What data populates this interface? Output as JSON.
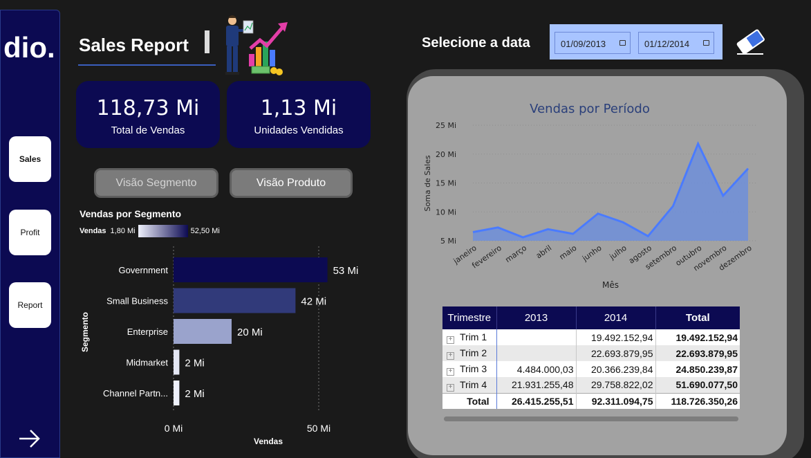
{
  "app": {
    "title": "Sales Report",
    "logo_text": "dio."
  },
  "sidebar": {
    "items": [
      {
        "label": "Sales"
      },
      {
        "label": "Profit"
      },
      {
        "label": "Report"
      }
    ]
  },
  "kpis": [
    {
      "value": "118,73 Mi",
      "label": "Total de Vendas"
    },
    {
      "value": "1,13 Mi",
      "label": "Unidades Vendidas"
    }
  ],
  "buttons": {
    "segment_view": "Visão Segmento",
    "product_view": "Visão Produto"
  },
  "date_filter": {
    "title": "Selecione a data",
    "start": "01/09/2013",
    "end": "01/12/2014"
  },
  "segment_chart": {
    "title": "Vendas por Segmento",
    "legend_label": "Vendas",
    "legend_min": "1,80 Mi",
    "legend_max": "52,50 Mi",
    "colors": [
      "#0c0a52",
      "#313a7a",
      "#9aa3cc",
      "#e3e6f3",
      "#eef0fb"
    ]
  },
  "period_chart": {
    "title": "Vendas por Período"
  },
  "chart_data": [
    {
      "type": "bar",
      "orientation": "horizontal",
      "title": "Vendas por Segmento",
      "xlabel": "Vendas",
      "ylabel": "Segmento",
      "categories": [
        "Government",
        "Small Business",
        "Enterprise",
        "Midmarket",
        "Channel Partn..."
      ],
      "values": [
        53,
        42,
        20,
        2,
        2
      ],
      "value_labels": [
        "53 Mi",
        "42 Mi",
        "20 Mi",
        "2 Mi",
        "2 Mi"
      ],
      "xlim": [
        0,
        53
      ],
      "x_ticks": [
        "0 Mi",
        "50 Mi"
      ]
    },
    {
      "type": "area",
      "title": "Vendas por Período",
      "xlabel": "Mês",
      "ylabel": "Soma de Sales",
      "categories": [
        "janeiro",
        "fevereiro",
        "março",
        "abril",
        "maio",
        "junho",
        "julho",
        "agosto",
        "setembro",
        "outubro",
        "novembro",
        "dezembro"
      ],
      "values": [
        6.5,
        7.3,
        5.6,
        7.0,
        6.2,
        9.7,
        8.2,
        5.8,
        11.0,
        21.8,
        12.8,
        17.5
      ],
      "ylim": [
        5,
        25
      ],
      "y_ticks": [
        "5 Mi",
        "10 Mi",
        "15 Mi",
        "20 Mi",
        "25 Mi"
      ],
      "y_tick_values": [
        5,
        10,
        15,
        20,
        25
      ],
      "color": "#4a7bff",
      "fill": "#6f8fdb",
      "grid": true
    }
  ],
  "matrix": {
    "headers": [
      "Trimestre",
      "2013",
      "2014",
      "Total"
    ],
    "rows": [
      {
        "label": "Trim 1",
        "y2013": "",
        "y2014": "19.492.152,94",
        "total": "19.492.152,94"
      },
      {
        "label": "Trim 2",
        "y2013": "",
        "y2014": "22.693.879,95",
        "total": "22.693.879,95"
      },
      {
        "label": "Trim 3",
        "y2013": "4.484.000,03",
        "y2014": "20.366.239,84",
        "total": "24.850.239,87"
      },
      {
        "label": "Trim 4",
        "y2013": "21.931.255,48",
        "y2014": "29.758.822,02",
        "total": "51.690.077,50"
      }
    ],
    "total": {
      "label": "Total",
      "y2013": "26.415.255,51",
      "y2014": "92.311.094,75",
      "total": "118.726.350,26"
    }
  }
}
